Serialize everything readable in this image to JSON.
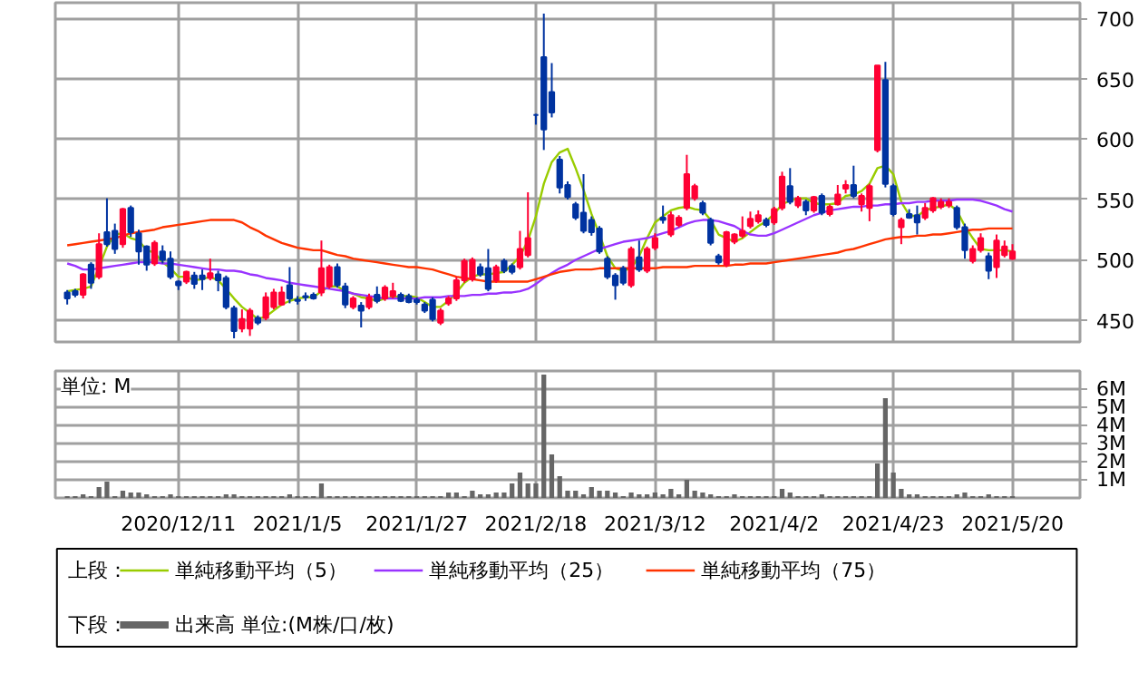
{
  "chart_data": [
    {
      "type": "candlestick",
      "tick_labels": "y",
      "grid": true,
      "legend": "bottom",
      "legend_title": "上段：",
      "categories": [
        null,
        null,
        null,
        null,
        null,
        null,
        null,
        null,
        null,
        null,
        null,
        null,
        null,
        null,
        "2020/12/11",
        null,
        null,
        null,
        null,
        null,
        null,
        null,
        null,
        null,
        null,
        null,
        null,
        null,
        null,
        "2021/1/5",
        null,
        null,
        null,
        null,
        null,
        null,
        null,
        null,
        null,
        null,
        null,
        null,
        null,
        null,
        "2021/1/27",
        null,
        null,
        null,
        null,
        null,
        null,
        null,
        null,
        null,
        null,
        null,
        null,
        null,
        null,
        "2021/2/18",
        null,
        null,
        null,
        null,
        null,
        null,
        null,
        null,
        null,
        null,
        null,
        null,
        null,
        null,
        "2021/3/12",
        null,
        null,
        null,
        null,
        null,
        null,
        null,
        null,
        null,
        null,
        null,
        null,
        null,
        null,
        "2021/4/2",
        null,
        null,
        null,
        null,
        null,
        null,
        null,
        null,
        null,
        null,
        null,
        null,
        null,
        null,
        "2021/4/23",
        null,
        null,
        null,
        null,
        null,
        null,
        null,
        null,
        null,
        null,
        null,
        null,
        null,
        null,
        "2021/5/20"
      ],
      "ylim": [
        432,
        713
      ],
      "yticks": [
        450,
        500,
        550,
        600,
        650,
        700
      ],
      "ohlc": [
        [
          473,
          475,
          463,
          468
        ],
        [
          474,
          476,
          469,
          471
        ],
        [
          471,
          489,
          468,
          488
        ],
        [
          496,
          498,
          476,
          481
        ],
        [
          486,
          522,
          484,
          513
        ],
        [
          523,
          551,
          511,
          513
        ],
        [
          524,
          530,
          505,
          509
        ],
        [
          513,
          543,
          510,
          542
        ],
        [
          543,
          545,
          519,
          523
        ],
        [
          522,
          525,
          496,
          507
        ],
        [
          511,
          512,
          491,
          496
        ],
        [
          497,
          516,
          495,
          514
        ],
        [
          507,
          512,
          497,
          500
        ],
        [
          501,
          507,
          484,
          486
        ],
        [
          482,
          483,
          475,
          479
        ],
        [
          482,
          491,
          480,
          490
        ],
        [
          487,
          490,
          476,
          480
        ],
        [
          487,
          492,
          475,
          484
        ],
        [
          485,
          501,
          483,
          489
        ],
        [
          488,
          491,
          474,
          483
        ],
        [
          485,
          487,
          459,
          461
        ],
        [
          460,
          462,
          435,
          441
        ],
        [
          443,
          459,
          440,
          451
        ],
        [
          443,
          460,
          437,
          458
        ],
        [
          452,
          454,
          446,
          448
        ],
        [
          452,
          473,
          450,
          469
        ],
        [
          461,
          476,
          459,
          473
        ],
        [
          463,
          478,
          462,
          473
        ],
        [
          479,
          494,
          464,
          468
        ],
        [
          467,
          470,
          463,
          466
        ],
        [
          470,
          473,
          466,
          469
        ],
        [
          471,
          473,
          467,
          468
        ],
        [
          473,
          516,
          470,
          493
        ],
        [
          478,
          496,
          476,
          494
        ],
        [
          494,
          497,
          477,
          479
        ],
        [
          478,
          481,
          460,
          463
        ],
        [
          461,
          470,
          459,
          468
        ],
        [
          462,
          465,
          444,
          458
        ],
        [
          461,
          472,
          459,
          469
        ],
        [
          471,
          478,
          464,
          466
        ],
        [
          468,
          479,
          466,
          477
        ],
        [
          470,
          481,
          468,
          474
        ],
        [
          471,
          473,
          465,
          466
        ],
        [
          470,
          472,
          464,
          465
        ],
        [
          467,
          469,
          463,
          465
        ],
        [
          463,
          465,
          456,
          458
        ],
        [
          467,
          469,
          449,
          451
        ],
        [
          448,
          460,
          446,
          458
        ],
        [
          464,
          470,
          462,
          468
        ],
        [
          468,
          486,
          466,
          483
        ],
        [
          483,
          501,
          481,
          499
        ],
        [
          484,
          502,
          482,
          500
        ],
        [
          494,
          497,
          486,
          488
        ],
        [
          493,
          509,
          474,
          476
        ],
        [
          483,
          496,
          481,
          494
        ],
        [
          499,
          501,
          489,
          491
        ],
        [
          495,
          497,
          488,
          490
        ],
        [
          494,
          524,
          492,
          509
        ],
        [
          504,
          556,
          502,
          518
        ],
        [
          620,
          621,
          612,
          620
        ],
        [
          668,
          704,
          591,
          608
        ],
        [
          639,
          663,
          618,
          622
        ],
        [
          583,
          586,
          555,
          560
        ],
        [
          562,
          565,
          550,
          552
        ],
        [
          546,
          548,
          533,
          535
        ],
        [
          539,
          571,
          522,
          524
        ],
        [
          533,
          536,
          520,
          523
        ],
        [
          526,
          528,
          505,
          507
        ],
        [
          501,
          503,
          484,
          486
        ],
        [
          487,
          489,
          467,
          479
        ],
        [
          493,
          495,
          479,
          481
        ],
        [
          479,
          511,
          477,
          509
        ],
        [
          502,
          516,
          490,
          492
        ],
        [
          491,
          511,
          489,
          509
        ],
        [
          510,
          522,
          508,
          518
        ],
        [
          535,
          545,
          530,
          533
        ],
        [
          521,
          540,
          519,
          537
        ],
        [
          529,
          537,
          527,
          535
        ],
        [
          543,
          587,
          541,
          571
        ],
        [
          551,
          563,
          549,
          561
        ],
        [
          547,
          549,
          537,
          539
        ],
        [
          533,
          535,
          512,
          514
        ],
        [
          503,
          505,
          496,
          498
        ],
        [
          496,
          524,
          494,
          523
        ],
        [
          515,
          522,
          513,
          521
        ],
        [
          520,
          536,
          518,
          524
        ],
        [
          528,
          540,
          526,
          534
        ],
        [
          532,
          541,
          530,
          537
        ],
        [
          533,
          535,
          527,
          529
        ],
        [
          531,
          544,
          529,
          542
        ],
        [
          543,
          573,
          541,
          569
        ],
        [
          561,
          576,
          546,
          548
        ],
        [
          545,
          553,
          543,
          551
        ],
        [
          548,
          550,
          537,
          541
        ],
        [
          541,
          553,
          539,
          552
        ],
        [
          553,
          555,
          537,
          539
        ],
        [
          538,
          546,
          536,
          544
        ],
        [
          546,
          562,
          545,
          554
        ],
        [
          559,
          566,
          555,
          562
        ],
        [
          562,
          578,
          551,
          553
        ],
        [
          546,
          555,
          540,
          553
        ],
        [
          543,
          563,
          532,
          561
        ],
        [
          591,
          661,
          589,
          661
        ],
        [
          649,
          664,
          560,
          563
        ],
        [
          561,
          563,
          536,
          538
        ],
        [
          527,
          535,
          513,
          533
        ],
        [
          538,
          542,
          534,
          535
        ],
        [
          537,
          545,
          521,
          531
        ],
        [
          535,
          547,
          533,
          543
        ],
        [
          541,
          552,
          539,
          551
        ],
        [
          544,
          551,
          542,
          548
        ],
        [
          545,
          551,
          543,
          548
        ],
        [
          543,
          545,
          525,
          527
        ],
        [
          527,
          530,
          501,
          508
        ],
        [
          499,
          512,
          497,
          509
        ],
        [
          508,
          522,
          506,
          518
        ],
        [
          503,
          506,
          484,
          491
        ],
        [
          494,
          521,
          485,
          516
        ],
        [
          504,
          516,
          502,
          511
        ],
        [
          501,
          513,
          500,
          507
        ]
      ],
      "colors": [
        "#0033a0",
        "#0033a0",
        "#ff0033",
        "#0033a0",
        "#ff0033",
        "#0033a0",
        "#0033a0",
        "#ff0033",
        "#0033a0",
        "#0033a0",
        "#0033a0",
        "#ff0033",
        "#0033a0",
        "#0033a0",
        "#0033a0",
        "#ff0033",
        "#0033a0",
        "#0033a0",
        "#ff0033",
        "#0033a0",
        "#0033a0",
        "#0033a0",
        "#ff0033",
        "#ff0033",
        "#0033a0",
        "#ff0033",
        "#ff0033",
        "#ff0033",
        "#0033a0",
        "#0033a0",
        "#0033a0",
        "#0033a0",
        "#ff0033",
        "#ff0033",
        "#0033a0",
        "#0033a0",
        "#ff0033",
        "#0033a0",
        "#ff0033",
        "#0033a0",
        "#ff0033",
        "#ff0033",
        "#0033a0",
        "#0033a0",
        "#0033a0",
        "#0033a0",
        "#0033a0",
        "#ff0033",
        "#ff0033",
        "#ff0033",
        "#ff0033",
        "#ff0033",
        "#0033a0",
        "#0033a0",
        "#ff0033",
        "#0033a0",
        "#0033a0",
        "#ff0033",
        "#ff0033",
        "#0033a0",
        "#0033a0",
        "#0033a0",
        "#0033a0",
        "#0033a0",
        "#0033a0",
        "#0033a0",
        "#0033a0",
        "#0033a0",
        "#0033a0",
        "#0033a0",
        "#0033a0",
        "#ff0033",
        "#0033a0",
        "#ff0033",
        "#ff0033",
        "#0033a0",
        "#ff0033",
        "#ff0033",
        "#ff0033",
        "#ff0033",
        "#0033a0",
        "#0033a0",
        "#0033a0",
        "#ff0033",
        "#ff0033",
        "#ff0033",
        "#ff0033",
        "#ff0033",
        "#0033a0",
        "#ff0033",
        "#ff0033",
        "#0033a0",
        "#ff0033",
        "#0033a0",
        "#ff0033",
        "#0033a0",
        "#ff0033",
        "#ff0033",
        "#ff0033",
        "#0033a0",
        "#ff0033",
        "#ff0033",
        "#ff0033",
        "#0033a0",
        "#0033a0",
        "#ff0033",
        "#0033a0",
        "#0033a0",
        "#ff0033",
        "#ff0033",
        "#ff0033",
        "#ff0033",
        "#0033a0",
        "#0033a0",
        "#ff0033",
        "#ff0033",
        "#0033a0",
        "#ff0033",
        "#ff0033",
        "#ff0033"
      ],
      "series": [
        {
          "name": "単純移動平均（5）",
          "type": "line",
          "color": "#99cc00",
          "values": [
            474,
            475,
            476,
            478,
            494,
            511,
            521,
            522,
            518,
            516,
            508,
            506,
            498,
            493,
            486,
            486,
            483,
            484,
            486,
            483,
            476,
            468,
            461,
            456,
            451,
            453,
            458,
            463,
            466,
            468,
            469,
            469,
            474,
            478,
            478,
            474,
            472,
            469,
            468,
            466,
            468,
            469,
            470,
            470,
            469,
            465,
            461,
            461,
            466,
            473,
            481,
            486,
            488,
            488,
            489,
            490,
            496,
            503,
            516,
            536,
            563,
            581,
            589,
            592,
            576,
            558,
            538,
            521,
            503,
            493,
            491,
            493,
            503,
            518,
            531,
            536,
            541,
            543,
            544,
            542,
            541,
            533,
            521,
            518,
            515,
            518,
            523,
            528,
            532,
            538,
            546,
            549,
            551,
            551,
            547,
            546,
            546,
            547,
            553,
            554,
            557,
            563,
            576,
            578,
            571,
            548,
            537,
            536,
            541,
            543,
            544,
            546,
            541,
            528,
            518,
            509,
            508,
            508,
            508,
            507
          ]
        },
        {
          "name": "単純移動平均（25）",
          "type": "line",
          "color": "#9933ff",
          "values": [
            497,
            495,
            492,
            492,
            493,
            494,
            495,
            496,
            497,
            498,
            498,
            498,
            497,
            497,
            496,
            495,
            494,
            493,
            492,
            492,
            491,
            491,
            490,
            488,
            487,
            485,
            484,
            483,
            481,
            480,
            479,
            478,
            477,
            476,
            475,
            474,
            472,
            471,
            470,
            469,
            468,
            468,
            468,
            468,
            468,
            469,
            469,
            469,
            470,
            470,
            470,
            471,
            471,
            472,
            472,
            473,
            473,
            474,
            476,
            480,
            485,
            489,
            493,
            496,
            500,
            503,
            506,
            509,
            511,
            513,
            515,
            516,
            517,
            518,
            520,
            522,
            524,
            527,
            530,
            532,
            533,
            533,
            532,
            530,
            528,
            524,
            521,
            520,
            520,
            522,
            525,
            528,
            531,
            534,
            537,
            539,
            541,
            542,
            543,
            544,
            544,
            545,
            545,
            546,
            546,
            547,
            547,
            548,
            548,
            549,
            549,
            549,
            550,
            550,
            550,
            549,
            547,
            545,
            542,
            540
          ]
        },
        {
          "name": "単純移動平均（75）",
          "type": "line",
          "color": "#ff3300",
          "values": [
            512,
            513,
            514,
            515,
            516,
            517,
            518,
            520,
            522,
            523,
            524,
            525,
            527,
            528,
            529,
            530,
            531,
            532,
            533,
            533,
            533,
            533,
            531,
            527,
            524,
            520,
            517,
            514,
            512,
            510,
            509,
            508,
            508,
            506,
            504,
            503,
            501,
            500,
            499,
            498,
            497,
            496,
            495,
            494,
            494,
            493,
            492,
            490,
            488,
            486,
            485,
            484,
            483,
            482,
            482,
            482,
            482,
            482,
            482,
            484,
            486,
            488,
            490,
            491,
            492,
            492,
            492,
            493,
            493,
            493,
            493,
            493,
            493,
            493,
            493,
            494,
            494,
            494,
            494,
            495,
            495,
            495,
            495,
            495,
            496,
            496,
            497,
            497,
            497,
            498,
            499,
            500,
            501,
            502,
            503,
            504,
            505,
            506,
            508,
            509,
            511,
            513,
            515,
            517,
            518,
            519,
            519,
            520,
            520,
            521,
            521,
            522,
            523,
            524,
            525,
            525,
            526,
            526,
            526,
            526
          ]
        }
      ]
    },
    {
      "type": "bar",
      "grid": true,
      "legend": "bottom",
      "legend_title": "下段：",
      "annotations": [
        "単位: M"
      ],
      "categories": [
        null,
        null,
        null,
        null,
        null,
        null,
        null,
        null,
        null,
        null,
        null,
        null,
        null,
        null,
        "2020/12/11",
        null,
        null,
        null,
        null,
        null,
        null,
        null,
        null,
        null,
        null,
        null,
        null,
        null,
        null,
        "2021/1/5",
        null,
        null,
        null,
        null,
        null,
        null,
        null,
        null,
        null,
        null,
        null,
        null,
        null,
        null,
        "2021/1/27",
        null,
        null,
        null,
        null,
        null,
        null,
        null,
        null,
        null,
        null,
        null,
        null,
        null,
        null,
        "2021/2/18",
        null,
        null,
        null,
        null,
        null,
        null,
        null,
        null,
        null,
        null,
        null,
        null,
        null,
        null,
        "2021/3/12",
        null,
        null,
        null,
        null,
        null,
        null,
        null,
        null,
        null,
        null,
        null,
        null,
        null,
        null,
        "2021/4/2",
        null,
        null,
        null,
        null,
        null,
        null,
        null,
        null,
        null,
        null,
        null,
        null,
        null,
        null,
        "2021/4/23",
        null,
        null,
        null,
        null,
        null,
        null,
        null,
        null,
        null,
        null,
        null,
        null,
        null,
        null,
        "2021/5/20"
      ],
      "ylim": [
        0,
        7
      ],
      "yticks": [
        {
          "value": 1,
          "label": "1M"
        },
        {
          "value": 2,
          "label": "2M"
        },
        {
          "value": 3,
          "label": "3M"
        },
        {
          "value": 4,
          "label": "4M"
        },
        {
          "value": 5,
          "label": "5M"
        },
        {
          "value": 6,
          "label": "6M"
        }
      ],
      "series": [
        {
          "name": "出来高 単位:(M株/口/枚)",
          "color": "#666666",
          "values": [
            0.1,
            0.1,
            0.2,
            0.1,
            0.6,
            0.9,
            0.1,
            0.4,
            0.3,
            0.3,
            0.2,
            0.1,
            0.1,
            0.2,
            0.1,
            0.1,
            0.1,
            0.1,
            0.1,
            0.1,
            0.2,
            0.2,
            0.1,
            0.1,
            0.1,
            0.1,
            0.1,
            0.1,
            0.2,
            0.1,
            0.1,
            0.1,
            0.8,
            0.1,
            0.1,
            0.1,
            0.1,
            0.1,
            0.1,
            0.1,
            0.1,
            0.1,
            0.1,
            0.1,
            0.1,
            0.1,
            0.1,
            0.1,
            0.3,
            0.3,
            0.1,
            0.4,
            0.2,
            0.2,
            0.3,
            0.3,
            0.8,
            1.4,
            0.8,
            0.8,
            6.8,
            2.4,
            1.2,
            0.4,
            0.4,
            0.2,
            0.6,
            0.4,
            0.4,
            0.3,
            0.1,
            0.3,
            0.2,
            0.2,
            0.3,
            0.2,
            0.5,
            0.2,
            1.0,
            0.4,
            0.3,
            0.2,
            0.1,
            0.1,
            0.2,
            0.1,
            0.1,
            0.1,
            0.1,
            0.1,
            0.5,
            0.3,
            0.1,
            0.1,
            0.1,
            0.2,
            0.1,
            0.1,
            0.1,
            0.1,
            0.1,
            0.1,
            1.9,
            5.5,
            1.4,
            0.5,
            0.2,
            0.2,
            0.1,
            0.1,
            0.1,
            0.1,
            0.2,
            0.3,
            0.1,
            0.1,
            0.2,
            0.1,
            0.1,
            0.1
          ]
        }
      ]
    }
  ]
}
